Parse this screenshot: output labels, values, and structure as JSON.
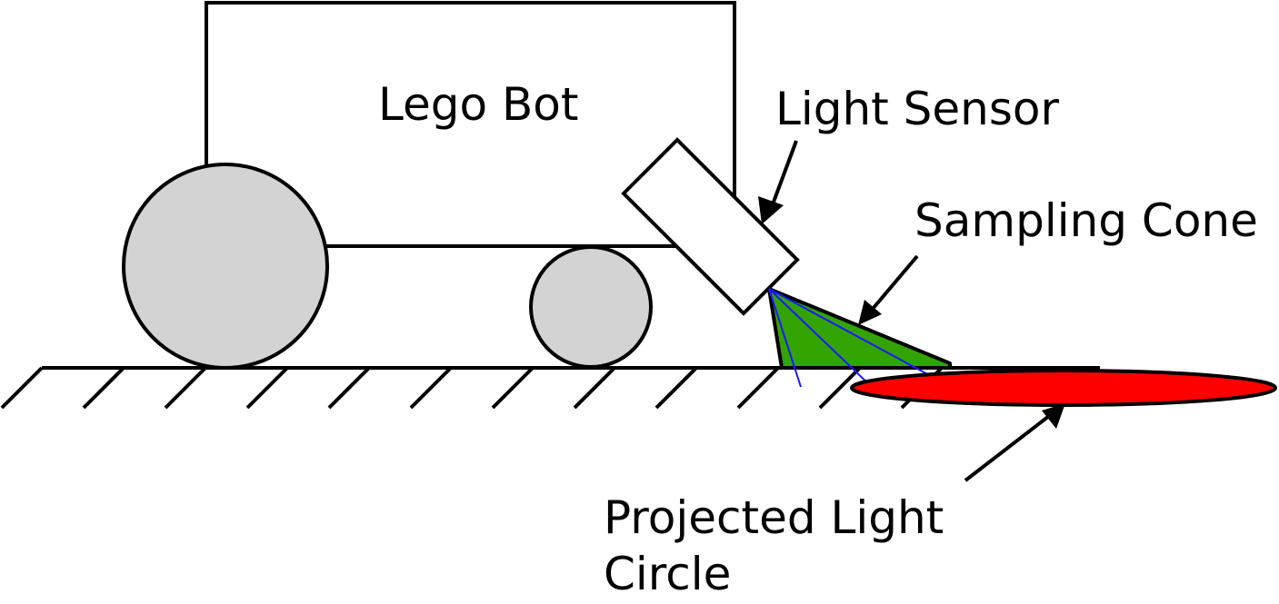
{
  "labels": {
    "robot_body": "Lego Bot",
    "light_sensor": "Light Sensor",
    "sampling_cone": "Sampling Cone",
    "projected_circle_line1": "Projected Light",
    "projected_circle_line2": "Circle"
  },
  "colors": {
    "wheel_fill": "#d3d3d3",
    "cone_fill": "#33a300",
    "cone_rays": "#1a1aff",
    "light_circle_fill": "#ff0000",
    "stroke": "#000000"
  }
}
